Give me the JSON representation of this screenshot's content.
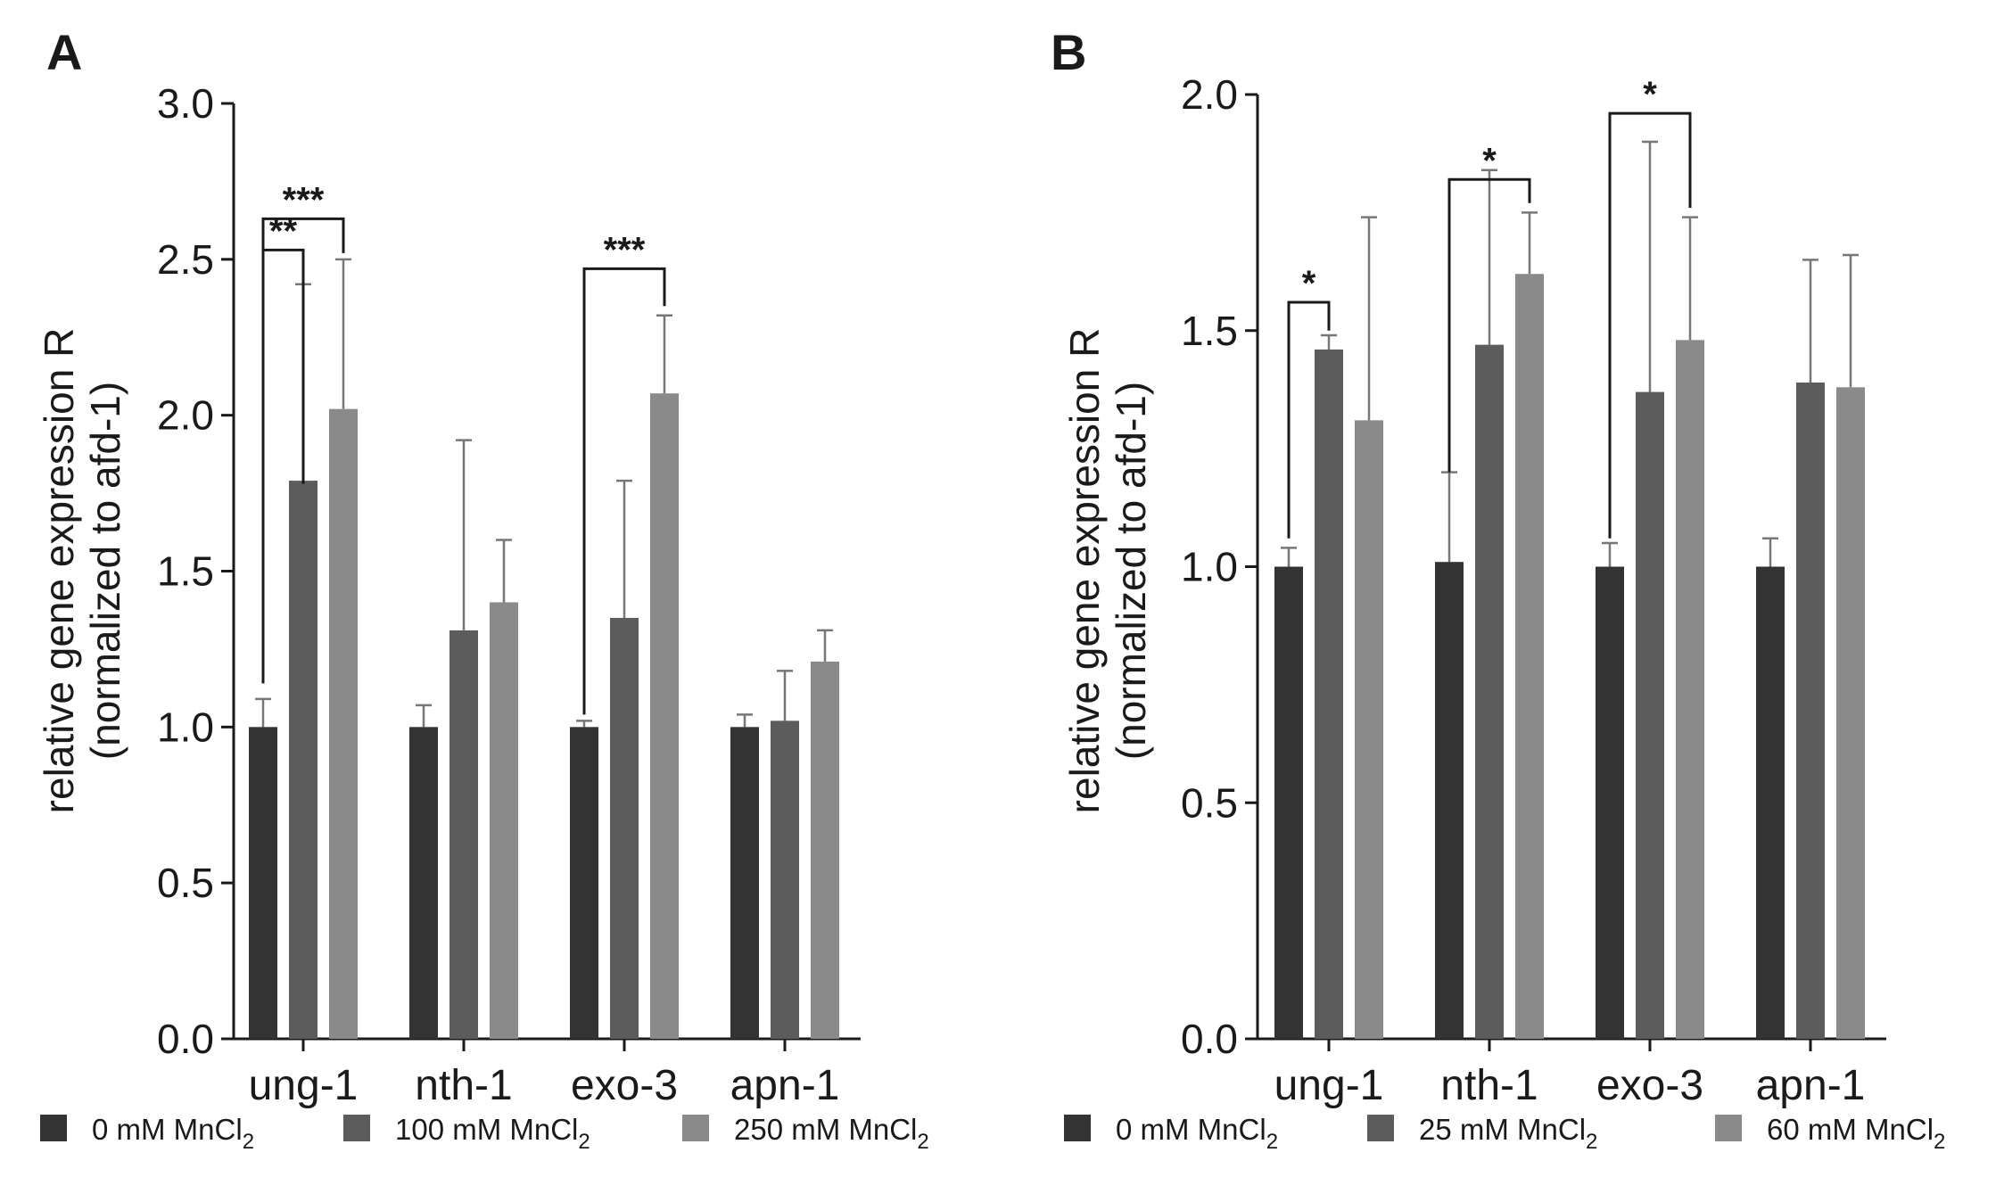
{
  "chart_data": [
    {
      "type": "bar",
      "panel": "A",
      "ylabel_line1": "relative gene expression R",
      "ylabel_line2": "(normalized to afd-1)",
      "ylim": [
        0,
        3.0
      ],
      "yticks": [
        "0.0",
        "0.5",
        "1.0",
        "1.5",
        "2.0",
        "2.5",
        "3.0"
      ],
      "categories": [
        "ung-1",
        "nth-1",
        "exo-3",
        "apn-1"
      ],
      "series": [
        {
          "name": "0 mM MnCl",
          "sub": "2",
          "color": "#333333",
          "values": [
            1.0,
            1.0,
            1.0,
            1.0
          ],
          "errors": [
            0.09,
            0.07,
            0.02,
            0.04
          ]
        },
        {
          "name": "100 mM MnCl",
          "sub": "2",
          "color": "#5c5c5c",
          "values": [
            1.79,
            1.31,
            1.35,
            1.02
          ],
          "errors": [
            0.63,
            0.61,
            0.44,
            0.16
          ]
        },
        {
          "name": "250 mM MnCl",
          "sub": "2",
          "color": "#8a8a8a",
          "values": [
            2.02,
            1.4,
            2.07,
            1.21
          ],
          "errors": [
            0.48,
            0.2,
            0.25,
            0.1
          ]
        }
      ],
      "significance": [
        {
          "category": 0,
          "from": 0,
          "to": 1,
          "label": "**",
          "from_y": 1.14,
          "to_y": 1.78,
          "y": 2.53
        },
        {
          "category": 0,
          "from": 0,
          "to": 2,
          "label": "***",
          "from_y": 2.53,
          "to_y": 2.52,
          "y": 2.63
        },
        {
          "category": 2,
          "from": 0,
          "to": 2,
          "label": "***",
          "from_y": 1.04,
          "to_y": 2.35,
          "y": 2.47
        }
      ]
    },
    {
      "type": "bar",
      "panel": "B",
      "ylabel_line1": "relative gene expression R",
      "ylabel_line2": "(normalized to afd-1)",
      "ylim": [
        0,
        2.0
      ],
      "yticks": [
        "0.0",
        "0.5",
        "1.0",
        "1.5",
        "2.0"
      ],
      "categories": [
        "ung-1",
        "nth-1",
        "exo-3",
        "apn-1"
      ],
      "series": [
        {
          "name": "0 mM MnCl",
          "sub": "2",
          "color": "#333333",
          "values": [
            1.0,
            1.01,
            1.0,
            1.0
          ],
          "errors": [
            0.04,
            0.19,
            0.05,
            0.06
          ]
        },
        {
          "name": "25 mM MnCl",
          "sub": "2",
          "color": "#5c5c5c",
          "values": [
            1.46,
            1.47,
            1.37,
            1.39
          ],
          "errors": [
            0.03,
            0.37,
            0.53,
            0.26
          ]
        },
        {
          "name": "60 mM MnCl",
          "sub": "2",
          "color": "#8a8a8a",
          "values": [
            1.31,
            1.62,
            1.48,
            1.38
          ],
          "errors": [
            0.43,
            0.13,
            0.26,
            0.28
          ]
        }
      ],
      "significance": [
        {
          "category": 0,
          "from": 0,
          "to": 1,
          "label": "*",
          "from_y": 1.06,
          "to_y": 1.5,
          "y": 1.56
        },
        {
          "category": 1,
          "from": 0,
          "to": 2,
          "label": "*",
          "from_y": 1.2,
          "to_y": 1.77,
          "y": 1.82
        },
        {
          "category": 2,
          "from": 0,
          "to": 2,
          "label": "*",
          "from_y": 1.06,
          "to_y": 1.76,
          "y": 1.96
        }
      ]
    }
  ]
}
